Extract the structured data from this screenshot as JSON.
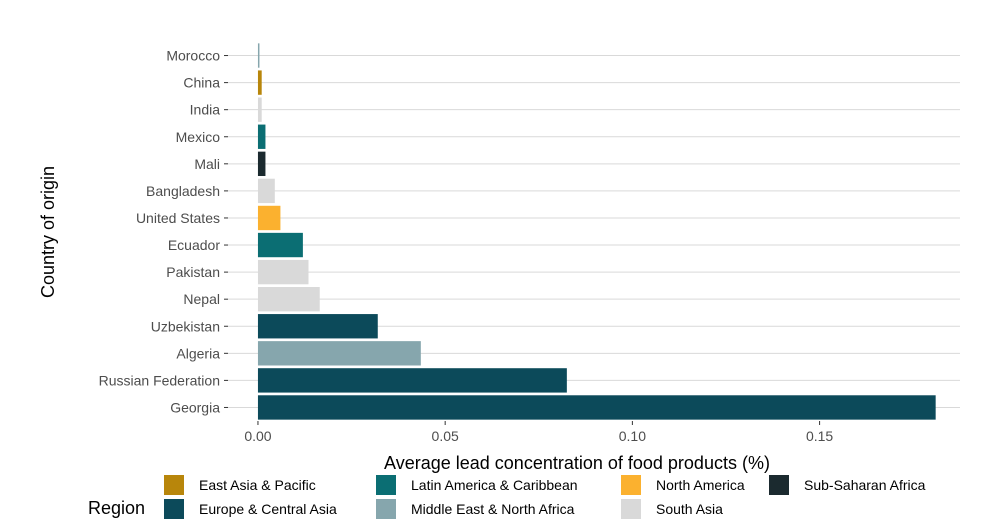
{
  "chart_data": {
    "type": "bar",
    "orientation": "horizontal",
    "xlabel": "Average lead concentration of food products (%)",
    "ylabel": "Country of origin",
    "xlim": [
      -0.008,
      0.1875
    ],
    "x_ticks": [
      0.0,
      0.05,
      0.1,
      0.15
    ],
    "x_tick_labels": [
      "0.00",
      "0.05",
      "0.10",
      "0.15"
    ],
    "grid": true,
    "categories": [
      "Morocco",
      "China",
      "India",
      "Mexico",
      "Mali",
      "Bangladesh",
      "United States",
      "Ecuador",
      "Pakistan",
      "Nepal",
      "Uzbekistan",
      "Algeria",
      "Russian Federation",
      "Georgia"
    ],
    "values": [
      0.0004,
      0.001,
      0.001,
      0.002,
      0.002,
      0.0045,
      0.006,
      0.012,
      0.0135,
      0.0165,
      0.032,
      0.0435,
      0.0825,
      0.181
    ],
    "regions": [
      "Middle East & North Africa",
      "East Asia & Pacific",
      "South Asia",
      "Latin America & Caribbean",
      "Sub-Saharan Africa",
      "South Asia",
      "North America",
      "Latin America & Caribbean",
      "South Asia",
      "South Asia",
      "Europe & Central Asia",
      "Middle East & North Africa",
      "Europe & Central Asia",
      "Europe & Central Asia"
    ],
    "legend": {
      "title": "Region",
      "position": "bottom",
      "items": [
        {
          "name": "East Asia & Pacific",
          "color": "#b8860b"
        },
        {
          "name": "Europe & Central Asia",
          "color": "#0c4a5a"
        },
        {
          "name": "Latin America & Caribbean",
          "color": "#0b6e73"
        },
        {
          "name": "Middle East & North Africa",
          "color": "#86a6ad"
        },
        {
          "name": "North America",
          "color": "#fbb12f"
        },
        {
          "name": "South Asia",
          "color": "#d9d9d9"
        },
        {
          "name": "Sub-Saharan Africa",
          "color": "#1b2a2f"
        }
      ]
    }
  }
}
